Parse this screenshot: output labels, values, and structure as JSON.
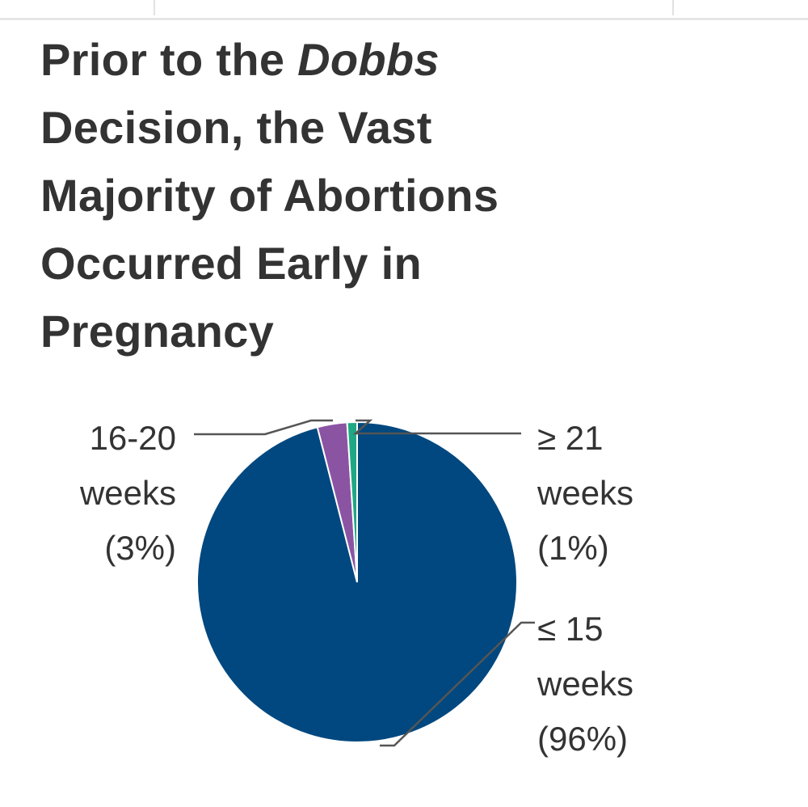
{
  "title": {
    "part1": "Prior to the ",
    "italic": "Dobbs",
    "part2": " Decision, the Vast Majority of Abortions Occurred Early in Pregnancy"
  },
  "chart_data": {
    "type": "pie",
    "title": "Prior to the Dobbs Decision, the Vast Majority of Abortions Occurred Early in Pregnancy",
    "slices": [
      {
        "label": "≤ 15 weeks",
        "value": 96,
        "value_label": "(96%)",
        "color": "#00487f"
      },
      {
        "label": "16-20 weeks",
        "value": 3,
        "value_label": "(3%)",
        "color": "#8b54a3"
      },
      {
        "label": "≥ 21 weeks",
        "value": 1,
        "value_label": "(1%)",
        "color": "#1fa883"
      }
    ]
  }
}
